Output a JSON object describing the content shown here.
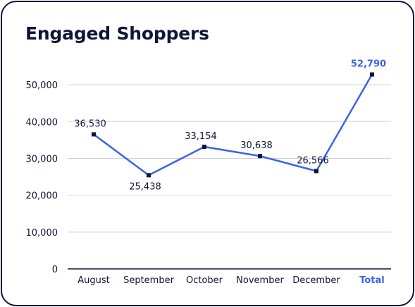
{
  "chart_data": {
    "type": "line",
    "title": "Engaged Shoppers",
    "categories": [
      "August",
      "September",
      "October",
      "November",
      "December",
      "Total"
    ],
    "values": [
      36530,
      25438,
      33154,
      30638,
      26566,
      52790
    ],
    "value_labels": [
      "36,530",
      "25,438",
      "33,154",
      "30,638",
      "26,566",
      "52,790"
    ],
    "highlight_category": "Total",
    "y_ticks": [
      "0",
      "10,000",
      "20,000",
      "30,000",
      "40,000",
      "50,000"
    ],
    "ylim": [
      0,
      55000
    ],
    "grid": true,
    "line_color": "#3b63e8",
    "highlight_color": "#3b63e8",
    "text_color": "#0f1638"
  }
}
